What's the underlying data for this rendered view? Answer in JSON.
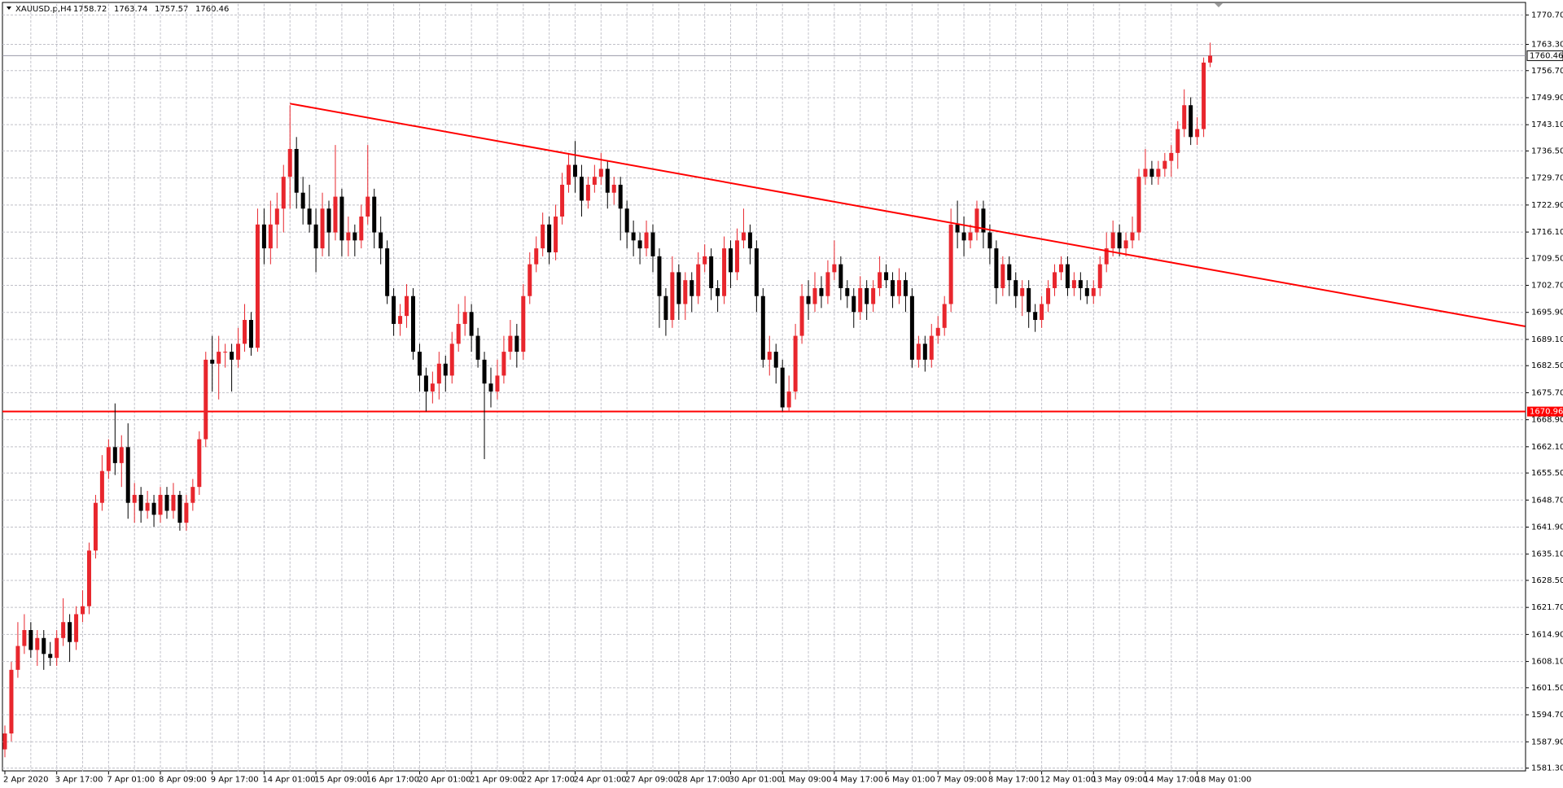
{
  "header": {
    "symbol": "XAUUSD.p,H4"
  },
  "chart_data": {
    "type": "candlestick",
    "categories": [
      "2 Apr 2020",
      null,
      null,
      null,
      null,
      null,
      null,
      null,
      "3 Apr 17:00",
      null,
      null,
      null,
      null,
      null,
      null,
      null,
      "7 Apr 01:00",
      null,
      null,
      null,
      null,
      null,
      null,
      null,
      "8 Apr 09:00",
      null,
      null,
      null,
      null,
      null,
      null,
      null,
      "9 Apr 17:00",
      null,
      null,
      null,
      null,
      null,
      null,
      null,
      "14 Apr 01:00",
      null,
      null,
      null,
      null,
      null,
      null,
      null,
      "15 Apr 09:00",
      null,
      null,
      null,
      null,
      null,
      null,
      null,
      "16 Apr 17:00",
      null,
      null,
      null,
      null,
      null,
      null,
      null,
      "20 Apr 01:00",
      null,
      null,
      null,
      null,
      null,
      null,
      null,
      "21 Apr 09:00",
      null,
      null,
      null,
      null,
      null,
      null,
      null,
      "22 Apr 17:00",
      null,
      null,
      null,
      null,
      null,
      null,
      null,
      "24 Apr 01:00",
      null,
      null,
      null,
      null,
      null,
      null,
      null,
      "27 Apr 09:00",
      null,
      null,
      null,
      null,
      null,
      null,
      null,
      "28 Apr 17:00",
      null,
      null,
      null,
      null,
      null,
      null,
      null,
      "30 Apr 01:00",
      null,
      null,
      null,
      null,
      null,
      null,
      null,
      "1 May 09:00",
      null,
      null,
      null,
      null,
      null,
      null,
      null,
      "4 May 17:00",
      null,
      null,
      null,
      null,
      null,
      null,
      null,
      "6 May 01:00",
      null,
      null,
      null,
      null,
      null,
      null,
      null,
      "7 May 09:00",
      null,
      null,
      null,
      null,
      null,
      null,
      null,
      "8 May 17:00",
      null,
      null,
      null,
      null,
      null,
      null,
      null,
      "12 May 01:00",
      null,
      null,
      null,
      null,
      null,
      null,
      null,
      "13 May 09:00",
      null,
      null,
      null,
      null,
      null,
      null,
      null,
      "14 May 17:00",
      null,
      null,
      null,
      null,
      null,
      null,
      null,
      "18 May 01:00",
      null,
      null
    ],
    "ohlc": [
      [
        1586,
        1592,
        1584,
        1590
      ],
      [
        1590,
        1608,
        1588,
        1606
      ],
      [
        1606,
        1618,
        1604,
        1612
      ],
      [
        1612,
        1620,
        1610,
        1616
      ],
      [
        1616,
        1618,
        1609,
        1611
      ],
      [
        1611,
        1616,
        1607,
        1614
      ],
      [
        1614,
        1616,
        1606,
        1610
      ],
      [
        1610,
        1613,
        1607,
        1609
      ],
      [
        1609,
        1616,
        1607,
        1614
      ],
      [
        1614,
        1624,
        1612,
        1618
      ],
      [
        1618,
        1620,
        1608,
        1613
      ],
      [
        1613,
        1622,
        1611,
        1620
      ],
      [
        1620,
        1626,
        1618,
        1622
      ],
      [
        1622,
        1638,
        1620,
        1636
      ],
      [
        1636,
        1650,
        1634,
        1648
      ],
      [
        1648,
        1660,
        1646,
        1656
      ],
      [
        1656,
        1664,
        1654,
        1662
      ],
      [
        1662,
        1673,
        1655,
        1658
      ],
      [
        1658,
        1665,
        1652,
        1662
      ],
      [
        1662,
        1668,
        1644,
        1648
      ],
      [
        1648,
        1653,
        1643,
        1650
      ],
      [
        1650,
        1652,
        1643,
        1646
      ],
      [
        1646,
        1651,
        1644,
        1648
      ],
      [
        1648,
        1650,
        1642,
        1645
      ],
      [
        1645,
        1652,
        1643,
        1650
      ],
      [
        1650,
        1652,
        1644,
        1646
      ],
      [
        1646,
        1653,
        1644,
        1650
      ],
      [
        1650,
        1651,
        1641,
        1643
      ],
      [
        1643,
        1650,
        1641,
        1648
      ],
      [
        1648,
        1654,
        1646,
        1652
      ],
      [
        1652,
        1666,
        1650,
        1664
      ],
      [
        1664,
        1686,
        1662,
        1684
      ],
      [
        1684,
        1690,
        1676,
        1683
      ],
      [
        1683,
        1690,
        1674,
        1686
      ],
      [
        1686,
        1688,
        1682,
        1686
      ],
      [
        1686,
        1688,
        1676,
        1684
      ],
      [
        1684,
        1692,
        1682,
        1688
      ],
      [
        1688,
        1698,
        1686,
        1694
      ],
      [
        1694,
        1696,
        1685,
        1687
      ],
      [
        1687,
        1722,
        1686,
        1718
      ],
      [
        1718,
        1722,
        1708,
        1712
      ],
      [
        1712,
        1724,
        1708,
        1718
      ],
      [
        1718,
        1726,
        1712,
        1722
      ],
      [
        1722,
        1733,
        1716,
        1730
      ],
      [
        1730,
        1748,
        1722,
        1737
      ],
      [
        1737,
        1740,
        1722,
        1726
      ],
      [
        1726,
        1730,
        1718,
        1722
      ],
      [
        1722,
        1728,
        1716,
        1718
      ],
      [
        1718,
        1722,
        1706,
        1712
      ],
      [
        1712,
        1726,
        1710,
        1722
      ],
      [
        1722,
        1724,
        1710,
        1716
      ],
      [
        1716,
        1738,
        1714,
        1725
      ],
      [
        1725,
        1727,
        1710,
        1714
      ],
      [
        1714,
        1720,
        1710,
        1716
      ],
      [
        1716,
        1718,
        1710,
        1714
      ],
      [
        1714,
        1723,
        1712,
        1720
      ],
      [
        1720,
        1738,
        1718,
        1725
      ],
      [
        1725,
        1727,
        1712,
        1716
      ],
      [
        1716,
        1720,
        1708,
        1712
      ],
      [
        1712,
        1714,
        1698,
        1700
      ],
      [
        1700,
        1702,
        1690,
        1693
      ],
      [
        1693,
        1698,
        1690,
        1695
      ],
      [
        1695,
        1703,
        1692,
        1700
      ],
      [
        1700,
        1702,
        1684,
        1686
      ],
      [
        1686,
        1688,
        1676,
        1680
      ],
      [
        1680,
        1682,
        1671,
        1676
      ],
      [
        1676,
        1681,
        1673,
        1678
      ],
      [
        1678,
        1686,
        1674,
        1683
      ],
      [
        1683,
        1685,
        1676,
        1680
      ],
      [
        1680,
        1691,
        1678,
        1688
      ],
      [
        1688,
        1698,
        1686,
        1693
      ],
      [
        1693,
        1700,
        1690,
        1696
      ],
      [
        1696,
        1698,
        1686,
        1690
      ],
      [
        1690,
        1692,
        1682,
        1684
      ],
      [
        1684,
        1686,
        1659,
        1678
      ],
      [
        1678,
        1682,
        1672,
        1676
      ],
      [
        1676,
        1684,
        1674,
        1680
      ],
      [
        1680,
        1690,
        1678,
        1686
      ],
      [
        1686,
        1694,
        1684,
        1690
      ],
      [
        1690,
        1693,
        1682,
        1686
      ],
      [
        1686,
        1703,
        1684,
        1700
      ],
      [
        1700,
        1711,
        1698,
        1708
      ],
      [
        1708,
        1715,
        1706,
        1712
      ],
      [
        1712,
        1721,
        1710,
        1718
      ],
      [
        1718,
        1720,
        1708,
        1711
      ],
      [
        1711,
        1723,
        1709,
        1720
      ],
      [
        1720,
        1731,
        1718,
        1728
      ],
      [
        1728,
        1736,
        1726,
        1733
      ],
      [
        1733,
        1739,
        1726,
        1730
      ],
      [
        1730,
        1733,
        1720,
        1724
      ],
      [
        1724,
        1730,
        1722,
        1728
      ],
      [
        1728,
        1733,
        1726,
        1730
      ],
      [
        1730,
        1736,
        1728,
        1732
      ],
      [
        1732,
        1734,
        1722,
        1726
      ],
      [
        1726,
        1730,
        1723,
        1728
      ],
      [
        1728,
        1730,
        1714,
        1722
      ],
      [
        1722,
        1724,
        1712,
        1716
      ],
      [
        1716,
        1719,
        1710,
        1714
      ],
      [
        1714,
        1716,
        1708,
        1712
      ],
      [
        1712,
        1719,
        1710,
        1716
      ],
      [
        1716,
        1718,
        1706,
        1710
      ],
      [
        1710,
        1712,
        1692,
        1700
      ],
      [
        1700,
        1702,
        1690,
        1694
      ],
      [
        1694,
        1710,
        1692,
        1706
      ],
      [
        1706,
        1708,
        1694,
        1698
      ],
      [
        1698,
        1706,
        1694,
        1704
      ],
      [
        1704,
        1706,
        1696,
        1700
      ],
      [
        1700,
        1711,
        1698,
        1708
      ],
      [
        1708,
        1713,
        1706,
        1710
      ],
      [
        1710,
        1712,
        1699,
        1702
      ],
      [
        1702,
        1704,
        1696,
        1700
      ],
      [
        1700,
        1715,
        1698,
        1712
      ],
      [
        1712,
        1714,
        1702,
        1706
      ],
      [
        1706,
        1717,
        1704,
        1714
      ],
      [
        1714,
        1722,
        1712,
        1716
      ],
      [
        1716,
        1718,
        1708,
        1712
      ],
      [
        1712,
        1714,
        1696,
        1700
      ],
      [
        1700,
        1702,
        1682,
        1684
      ],
      [
        1684,
        1690,
        1680,
        1686
      ],
      [
        1686,
        1688,
        1678,
        1682
      ],
      [
        1682,
        1684,
        1671,
        1672
      ],
      [
        1672,
        1680,
        1671,
        1676
      ],
      [
        1676,
        1693,
        1674,
        1690
      ],
      [
        1690,
        1703,
        1688,
        1700
      ],
      [
        1700,
        1704,
        1694,
        1698
      ],
      [
        1698,
        1706,
        1696,
        1702
      ],
      [
        1702,
        1705,
        1697,
        1700
      ],
      [
        1700,
        1709,
        1698,
        1706
      ],
      [
        1706,
        1714,
        1704,
        1708
      ],
      [
        1708,
        1710,
        1699,
        1702
      ],
      [
        1702,
        1704,
        1697,
        1700
      ],
      [
        1700,
        1702,
        1692,
        1696
      ],
      [
        1696,
        1705,
        1694,
        1702
      ],
      [
        1702,
        1704,
        1694,
        1698
      ],
      [
        1698,
        1704,
        1696,
        1702
      ],
      [
        1702,
        1710,
        1700,
        1706
      ],
      [
        1706,
        1708,
        1702,
        1704
      ],
      [
        1704,
        1706,
        1697,
        1700
      ],
      [
        1700,
        1707,
        1698,
        1704
      ],
      [
        1704,
        1706,
        1696,
        1700
      ],
      [
        1700,
        1702,
        1682,
        1684
      ],
      [
        1684,
        1690,
        1682,
        1688
      ],
      [
        1688,
        1690,
        1681,
        1684
      ],
      [
        1684,
        1693,
        1682,
        1690
      ],
      [
        1690,
        1695,
        1688,
        1692
      ],
      [
        1692,
        1700,
        1690,
        1698
      ],
      [
        1698,
        1722,
        1696,
        1718
      ],
      [
        1718,
        1724,
        1712,
        1716
      ],
      [
        1716,
        1720,
        1710,
        1714
      ],
      [
        1714,
        1718,
        1712,
        1716
      ],
      [
        1716,
        1724,
        1714,
        1722
      ],
      [
        1722,
        1724,
        1712,
        1716
      ],
      [
        1716,
        1718,
        1708,
        1712
      ],
      [
        1712,
        1714,
        1698,
        1702
      ],
      [
        1702,
        1710,
        1700,
        1708
      ],
      [
        1708,
        1710,
        1700,
        1704
      ],
      [
        1704,
        1706,
        1697,
        1700
      ],
      [
        1700,
        1704,
        1695,
        1702
      ],
      [
        1702,
        1704,
        1692,
        1696
      ],
      [
        1696,
        1698,
        1691,
        1694
      ],
      [
        1694,
        1700,
        1692,
        1698
      ],
      [
        1698,
        1704,
        1696,
        1702
      ],
      [
        1702,
        1708,
        1700,
        1706
      ],
      [
        1706,
        1710,
        1704,
        1708
      ],
      [
        1708,
        1710,
        1700,
        1702
      ],
      [
        1702,
        1706,
        1700,
        1704
      ],
      [
        1704,
        1706,
        1699,
        1702
      ],
      [
        1702,
        1704,
        1698,
        1700
      ],
      [
        1700,
        1704,
        1698,
        1702
      ],
      [
        1702,
        1710,
        1700,
        1708
      ],
      [
        1708,
        1716,
        1706,
        1712
      ],
      [
        1712,
        1719,
        1710,
        1716
      ],
      [
        1716,
        1718,
        1710,
        1712
      ],
      [
        1712,
        1716,
        1710,
        1714
      ],
      [
        1714,
        1720,
        1712,
        1716
      ],
      [
        1716,
        1732,
        1714,
        1730
      ],
      [
        1730,
        1737,
        1728,
        1732
      ],
      [
        1732,
        1734,
        1728,
        1730
      ],
      [
        1730,
        1734,
        1728,
        1732
      ],
      [
        1732,
        1736,
        1730,
        1734
      ],
      [
        1734,
        1738,
        1730,
        1736
      ],
      [
        1736,
        1744,
        1732,
        1742
      ],
      [
        1742,
        1752,
        1740,
        1748
      ],
      [
        1748,
        1750,
        1738,
        1740
      ],
      [
        1740,
        1745,
        1738,
        1742
      ],
      [
        1742,
        1760,
        1740,
        1758.72
      ],
      [
        1758.72,
        1763.74,
        1757.57,
        1760.46
      ]
    ],
    "up_color": "#e8262d",
    "down_color": "#000000",
    "ylim": [
      1580.5,
      1773.5
    ],
    "yticks": [
      {
        "value": 1770.7,
        "label": "1770.70"
      },
      {
        "value": 1763.3,
        "label": "1763.30"
      },
      {
        "value": 1756.7,
        "label": "1756.70"
      },
      {
        "value": 1749.9,
        "label": "1749.90"
      },
      {
        "value": 1743.1,
        "label": "1743.10"
      },
      {
        "value": 1736.5,
        "label": "1736.50"
      },
      {
        "value": 1729.7,
        "label": "1729.70"
      },
      {
        "value": 1722.9,
        "label": "1722.90"
      },
      {
        "value": 1716.1,
        "label": "1716.10"
      },
      {
        "value": 1709.5,
        "label": "1709.50"
      },
      {
        "value": 1702.7,
        "label": "1702.70"
      },
      {
        "value": 1695.9,
        "label": "1695.90"
      },
      {
        "value": 1689.1,
        "label": "1689.10"
      },
      {
        "value": 1682.5,
        "label": "1682.50"
      },
      {
        "value": 1675.7,
        "label": "1675.70"
      },
      {
        "value": 1668.9,
        "label": "1668.90"
      },
      {
        "value": 1662.1,
        "label": "1662.10"
      },
      {
        "value": 1655.5,
        "label": "1655.50"
      },
      {
        "value": 1648.7,
        "label": "1648.70"
      },
      {
        "value": 1641.9,
        "label": "1641.90"
      },
      {
        "value": 1635.1,
        "label": "1635.10"
      },
      {
        "value": 1628.5,
        "label": "1628.50"
      },
      {
        "value": 1621.7,
        "label": "1621.70"
      },
      {
        "value": 1614.9,
        "label": "1614.90"
      },
      {
        "value": 1608.1,
        "label": "1608.10"
      },
      {
        "value": 1601.5,
        "label": "1601.50"
      },
      {
        "value": 1594.7,
        "label": "1594.70"
      },
      {
        "value": 1587.9,
        "label": "1587.90"
      },
      {
        "value": 1581.3,
        "label": "1581.30"
      }
    ],
    "grid": true,
    "hline": {
      "value": 1670.96,
      "color": "#ff0000"
    },
    "trendline": {
      "x": [
        44,
        234.6
      ],
      "y": [
        1748.4,
        1692.4
      ],
      "color": "#ff0000"
    }
  }
}
